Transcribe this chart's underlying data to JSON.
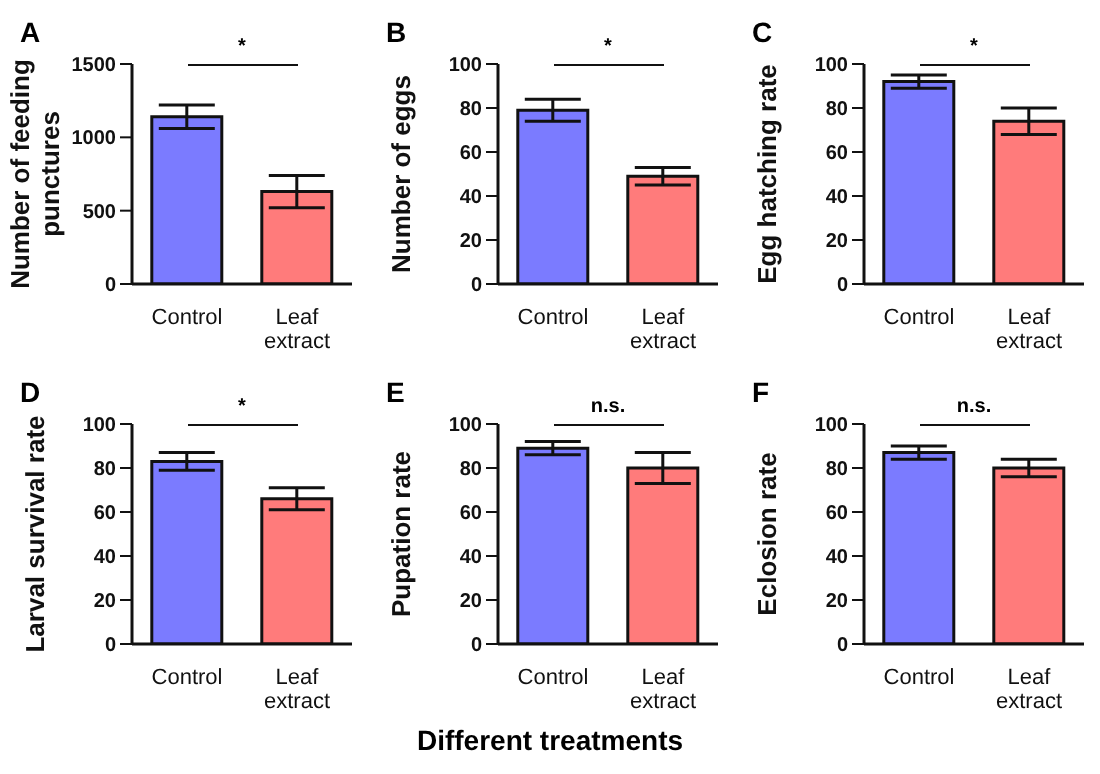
{
  "chart_data": [
    {
      "type": "bar",
      "title": "A",
      "ylabel": "Number of feeding punctures",
      "categories": [
        "Control",
        "Leaf extract"
      ],
      "values": [
        1140,
        630
      ],
      "errors": [
        80,
        110
      ],
      "colors": [
        "#7b7bff",
        "#ff7b7b"
      ],
      "ylim": [
        0,
        1500
      ],
      "yticks": [
        0,
        500,
        1000,
        1500
      ],
      "annotations": [
        "*"
      ]
    },
    {
      "type": "bar",
      "title": "B",
      "ylabel": "Number of eggs",
      "categories": [
        "Control",
        "Leaf extract"
      ],
      "values": [
        79,
        49
      ],
      "errors": [
        5,
        4
      ],
      "colors": [
        "#7b7bff",
        "#ff7b7b"
      ],
      "ylim": [
        0,
        100
      ],
      "yticks": [
        0,
        20,
        40,
        60,
        80,
        100
      ],
      "annotations": [
        "*"
      ]
    },
    {
      "type": "bar",
      "title": "C",
      "ylabel": "Egg hatching rate",
      "categories": [
        "Control",
        "Leaf extract"
      ],
      "values": [
        92,
        74
      ],
      "errors": [
        3,
        6
      ],
      "colors": [
        "#7b7bff",
        "#ff7b7b"
      ],
      "ylim": [
        0,
        100
      ],
      "yticks": [
        0,
        20,
        40,
        60,
        80,
        100
      ],
      "annotations": [
        "*"
      ]
    },
    {
      "type": "bar",
      "title": "D",
      "ylabel": "Larval survival rate",
      "categories": [
        "Control",
        "Leaf extract"
      ],
      "values": [
        83,
        66
      ],
      "errors": [
        4,
        5
      ],
      "colors": [
        "#7b7bff",
        "#ff7b7b"
      ],
      "ylim": [
        0,
        100
      ],
      "yticks": [
        0,
        20,
        40,
        60,
        80,
        100
      ],
      "annotations": [
        "*"
      ]
    },
    {
      "type": "bar",
      "title": "E",
      "ylabel": "Pupation rate",
      "xlabel": "Different treatments",
      "categories": [
        "Control",
        "Leaf extract"
      ],
      "values": [
        89,
        80
      ],
      "errors": [
        3,
        7
      ],
      "colors": [
        "#7b7bff",
        "#ff7b7b"
      ],
      "ylim": [
        0,
        100
      ],
      "yticks": [
        0,
        20,
        40,
        60,
        80,
        100
      ],
      "annotations": [
        "n.s."
      ]
    },
    {
      "type": "bar",
      "title": "F",
      "ylabel": "Eclosion rate",
      "categories": [
        "Control",
        "Leaf extract"
      ],
      "values": [
        87,
        80
      ],
      "errors": [
        3,
        4
      ],
      "colors": [
        "#7b7bff",
        "#ff7b7b"
      ],
      "ylim": [
        0,
        100
      ],
      "yticks": [
        0,
        20,
        40,
        60,
        80,
        100
      ],
      "annotations": [
        "n.s."
      ]
    }
  ]
}
